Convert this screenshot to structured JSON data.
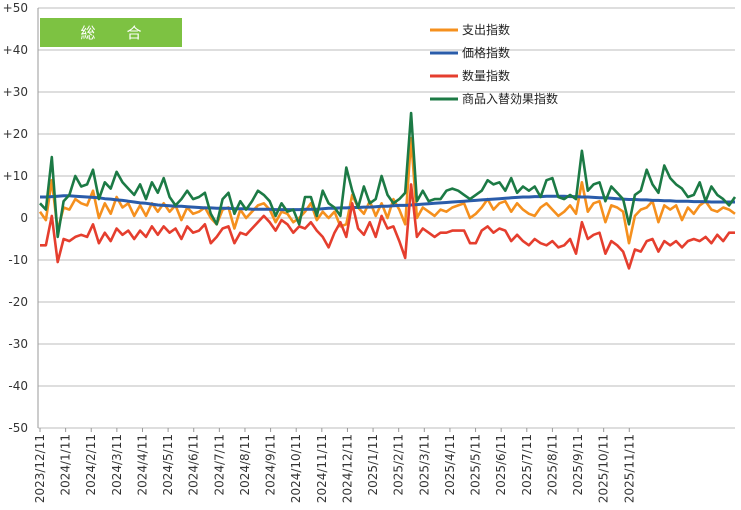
{
  "chart_data": {
    "type": "line",
    "title": "総　合",
    "title_badge_color": "#7dc242",
    "ylim": [
      -50,
      50
    ],
    "yticks": [
      50,
      40,
      30,
      20,
      10,
      0,
      -10,
      -20,
      -30,
      -40,
      -50
    ],
    "ytick_labels": [
      "+50",
      "+40",
      "+30",
      "+20",
      "+10",
      "0",
      "-10",
      "-20",
      "-30",
      "-40",
      "-50"
    ],
    "grid": "horizontal",
    "legend_position": "top-right",
    "xlabel": "",
    "ylabel": "",
    "x_start": "2023/12/11",
    "x_interval": "week",
    "x_tick_labels": [
      "2023/12/11",
      "2024/1/11",
      "2024/2/11",
      "2024/3/11",
      "2024/4/11",
      "2024/5/11",
      "2024/6/11",
      "2024/7/11",
      "2024/8/11",
      "2024/9/11",
      "2024/10/11",
      "2024/11/11",
      "2024/12/11",
      "2025/1/11",
      "2025/2/11",
      "2025/3/11",
      "2025/4/11",
      "2025/5/11",
      "2025/6/11",
      "2025/7/11",
      "2025/8/11",
      "2025/9/11",
      "2025/10/11",
      "2025/11/11"
    ],
    "series": [
      {
        "name": "支出指数",
        "color": "#f5901e",
        "values": [
          1.5,
          -0.5,
          9.0,
          -3.0,
          2.5,
          2.0,
          4.5,
          3.5,
          3.0,
          6.5,
          0.0,
          3.5,
          1.0,
          5.0,
          2.5,
          3.5,
          0.5,
          3.0,
          0.5,
          3.5,
          1.5,
          3.5,
          1.5,
          3.0,
          -0.5,
          2.5,
          1.0,
          1.5,
          2.5,
          0.0,
          -1.5,
          2.0,
          2.5,
          -2.5,
          2.0,
          0.0,
          1.5,
          3.0,
          3.5,
          2.0,
          -1.0,
          1.5,
          1.0,
          -1.0,
          0.0,
          1.5,
          3.5,
          -0.5,
          1.5,
          0.0,
          1.5,
          -2.0,
          -1.5,
          5.5,
          2.5,
          1.0,
          4.0,
          0.5,
          3.5,
          0.0,
          4.5,
          2.0,
          -1.5,
          19.0,
          0.0,
          2.5,
          1.5,
          0.5,
          2.0,
          1.5,
          2.5,
          3.0,
          3.5,
          0.0,
          1.0,
          2.5,
          4.5,
          2.0,
          3.5,
          4.0,
          1.5,
          3.5,
          2.0,
          1.0,
          0.5,
          2.5,
          3.5,
          2.0,
          0.5,
          1.5,
          3.0,
          1.0,
          8.5,
          1.5,
          3.5,
          4.0,
          -1.0,
          3.0,
          2.5,
          1.5,
          -6.0,
          0.5,
          2.0,
          2.5,
          4.0,
          -1.0,
          3.0,
          2.0,
          3.0,
          -0.5,
          2.5,
          1.0,
          3.0,
          4.0,
          2.0,
          1.5,
          2.5,
          2.0,
          1.0
        ]
      },
      {
        "name": "価格指数",
        "color": "#2a5caa",
        "values": [
          5.0,
          5.0,
          5.1,
          5.2,
          5.3,
          5.3,
          5.2,
          5.1,
          5.0,
          4.9,
          4.8,
          4.6,
          4.5,
          4.3,
          4.2,
          4.0,
          3.8,
          3.6,
          3.5,
          3.3,
          3.1,
          3.0,
          2.9,
          2.8,
          2.8,
          2.7,
          2.6,
          2.5,
          2.4,
          2.4,
          2.3,
          2.3,
          2.3,
          2.2,
          2.2,
          2.2,
          2.1,
          2.1,
          2.1,
          2.1,
          2.0,
          2.0,
          2.0,
          2.0,
          2.0,
          2.1,
          2.1,
          2.1,
          2.2,
          2.3,
          2.3,
          2.4,
          2.4,
          2.5,
          2.5,
          2.6,
          2.6,
          2.7,
          2.8,
          2.8,
          2.9,
          3.0,
          3.0,
          3.1,
          3.2,
          3.3,
          3.4,
          3.5,
          3.6,
          3.7,
          3.8,
          3.9,
          4.0,
          4.1,
          4.2,
          4.3,
          4.4,
          4.5,
          4.6,
          4.7,
          4.8,
          4.9,
          5.0,
          5.0,
          5.1,
          5.1,
          5.2,
          5.2,
          5.2,
          5.2,
          5.1,
          5.1,
          5.0,
          5.0,
          4.9,
          4.8,
          4.8,
          4.7,
          4.6,
          4.5,
          4.4,
          4.4,
          4.3,
          4.3,
          4.2,
          4.2,
          4.1,
          4.1,
          4.0,
          4.0,
          4.0,
          3.9,
          3.9,
          3.9,
          3.8,
          3.8,
          3.8,
          3.8,
          3.8
        ]
      },
      {
        "name": "数量指数",
        "color": "#e53e2e",
        "values": [
          -6.5,
          -6.5,
          0.5,
          -10.5,
          -5.0,
          -5.5,
          -4.5,
          -4.0,
          -4.5,
          -1.5,
          -6.0,
          -3.5,
          -5.5,
          -2.5,
          -4.0,
          -3.0,
          -5.0,
          -3.0,
          -4.5,
          -2.0,
          -4.0,
          -2.0,
          -3.5,
          -2.5,
          -5.0,
          -2.0,
          -3.5,
          -3.0,
          -1.5,
          -6.0,
          -4.5,
          -2.5,
          -2.0,
          -6.0,
          -3.5,
          -4.0,
          -2.5,
          -1.0,
          0.5,
          -1.0,
          -3.0,
          -0.5,
          -1.5,
          -3.5,
          -2.0,
          -2.5,
          -1.0,
          -3.0,
          -4.5,
          -7.0,
          -3.5,
          -1.0,
          -4.5,
          3.5,
          -2.5,
          -4.0,
          -1.0,
          -4.5,
          0.5,
          -2.5,
          -2.0,
          -5.5,
          -9.5,
          8.0,
          -4.5,
          -2.5,
          -3.5,
          -4.5,
          -3.5,
          -3.5,
          -3.0,
          -3.0,
          -3.0,
          -6.0,
          -6.0,
          -3.0,
          -2.0,
          -3.5,
          -2.5,
          -3.0,
          -5.5,
          -4.0,
          -5.5,
          -6.5,
          -5.0,
          -6.0,
          -6.5,
          -5.5,
          -7.0,
          -6.5,
          -5.0,
          -8.5,
          -1.0,
          -5.0,
          -4.0,
          -3.5,
          -8.5,
          -5.5,
          -6.5,
          -8.0,
          -12.0,
          -7.5,
          -8.0,
          -5.5,
          -5.0,
          -8.0,
          -5.5,
          -6.5,
          -5.5,
          -7.0,
          -5.5,
          -5.0,
          -5.5,
          -4.5,
          -6.0,
          -4.0,
          -5.5,
          -3.5,
          -3.5
        ]
      },
      {
        "name": "商品入替効果指数",
        "color": "#1c7a45",
        "values": [
          3.5,
          2.0,
          14.5,
          -4.5,
          4.0,
          5.5,
          10.0,
          7.5,
          8.0,
          11.5,
          4.5,
          8.5,
          7.0,
          11.0,
          8.5,
          7.0,
          5.5,
          8.0,
          4.5,
          8.5,
          6.0,
          9.5,
          5.0,
          3.0,
          4.5,
          6.5,
          4.5,
          5.0,
          6.0,
          1.0,
          -1.5,
          4.5,
          6.0,
          1.0,
          4.0,
          2.0,
          4.0,
          6.5,
          5.5,
          4.0,
          0.5,
          3.5,
          1.5,
          2.0,
          -1.5,
          5.0,
          5.0,
          0.5,
          6.5,
          3.5,
          2.5,
          0.5,
          12.0,
          6.5,
          2.5,
          7.5,
          3.5,
          4.5,
          10.0,
          5.5,
          3.5,
          4.5,
          6.0,
          25.0,
          4.0,
          6.5,
          4.0,
          4.5,
          4.5,
          6.5,
          7.0,
          6.5,
          5.5,
          4.5,
          5.5,
          6.5,
          9.0,
          8.0,
          8.5,
          6.5,
          9.5,
          6.0,
          7.5,
          6.5,
          7.5,
          5.0,
          9.0,
          9.5,
          5.0,
          4.5,
          5.5,
          4.5,
          16.0,
          6.5,
          8.0,
          8.5,
          4.0,
          7.5,
          6.0,
          4.5,
          -1.5,
          5.5,
          6.5,
          11.5,
          8.0,
          6.0,
          12.5,
          9.5,
          8.0,
          7.0,
          5.0,
          5.5,
          8.5,
          4.0,
          7.5,
          5.5,
          4.5,
          3.0,
          5.0
        ]
      }
    ]
  }
}
